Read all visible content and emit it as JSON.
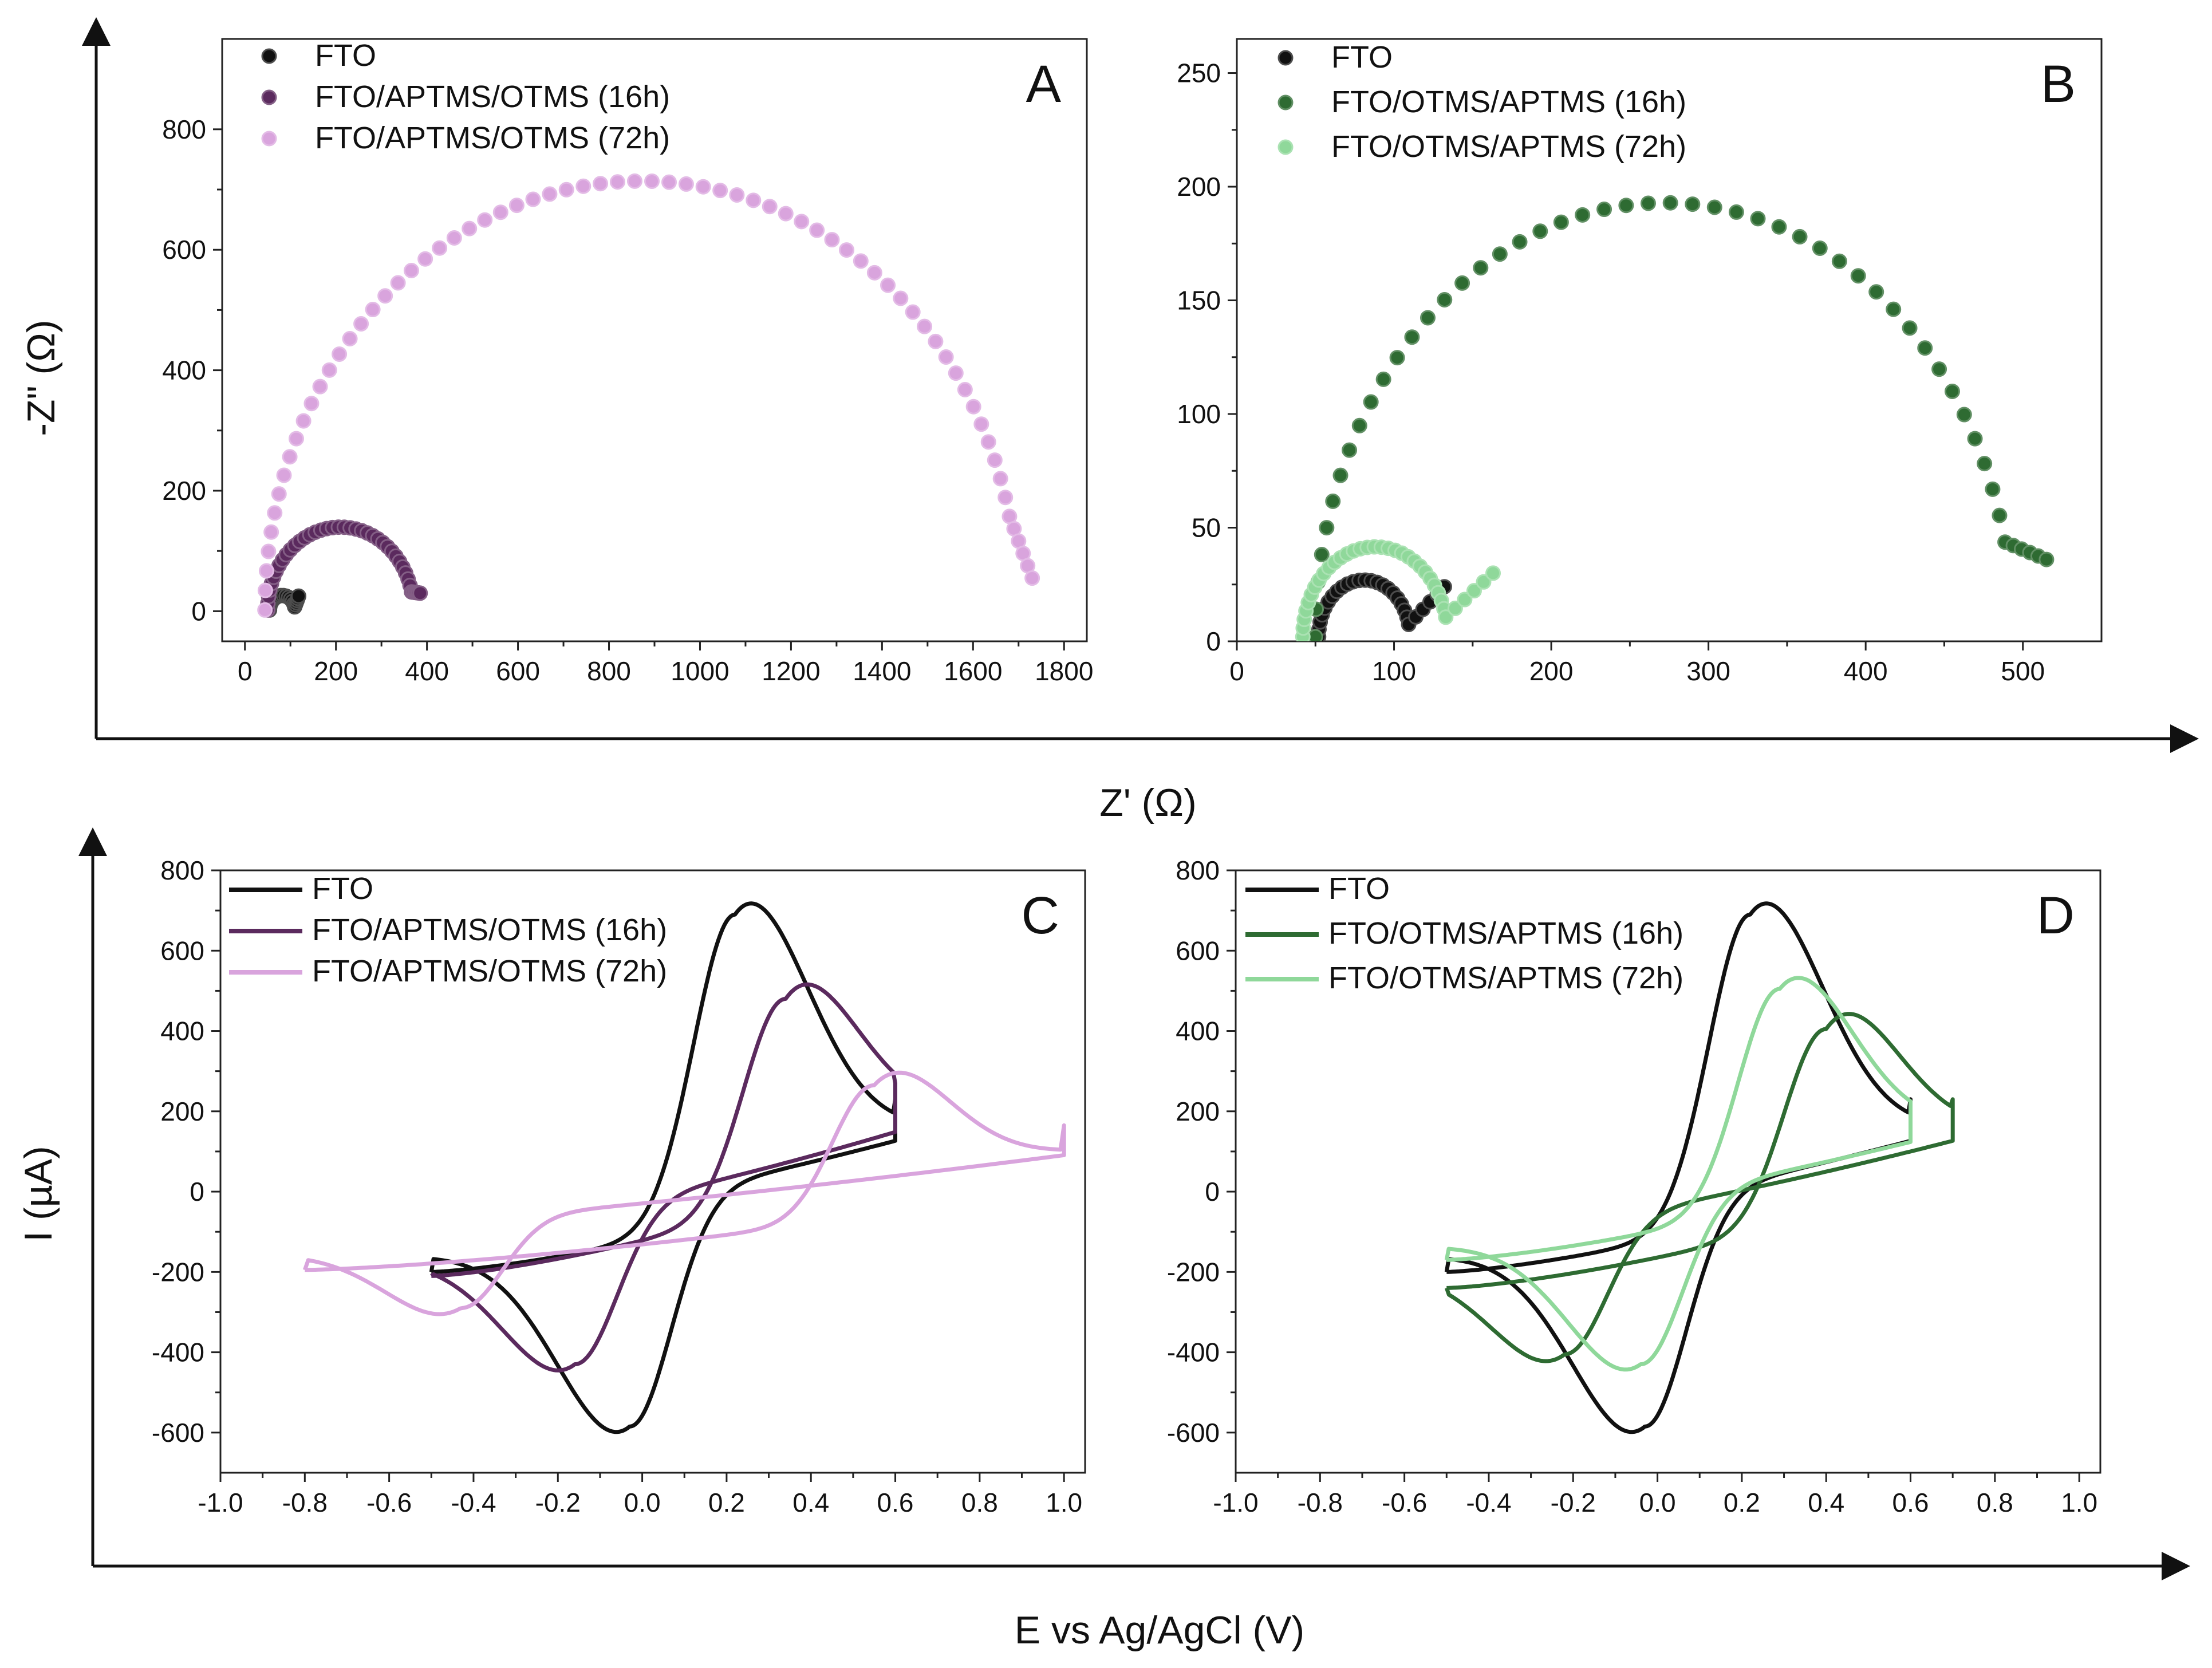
{
  "figure": {
    "top_y_title": "-Z\" (Ω)",
    "top_x_title": "Z' (Ω)",
    "bottom_y_title": "I (µA)",
    "bottom_x_title": "E vs Ag/AgCl (V)"
  },
  "colors": {
    "black": "#111111",
    "dark_purple": "#5b2a5e",
    "light_purple": "#d9a4dd",
    "dark_green": "#2e6b32",
    "light_green": "#8fd89a"
  },
  "chart_data": [
    {
      "id": "A",
      "panel_label": "A",
      "type": "scatter",
      "xlim": [
        -50,
        1850
      ],
      "ylim": [
        -50,
        950
      ],
      "xticks": [
        0,
        200,
        400,
        600,
        800,
        1000,
        1200,
        1400,
        1600,
        1800
      ],
      "yticks": [
        0,
        200,
        400,
        600,
        800
      ],
      "tick_labels_x": [
        "0",
        "200",
        "400",
        "600",
        "800",
        "1000",
        "1200",
        "1400",
        "1600",
        "1800"
      ],
      "tick_labels_y": [
        "0",
        "200",
        "400",
        "600",
        "800"
      ],
      "legend_position": "top-left",
      "series": [
        {
          "name": "FTO",
          "color_key": "black",
          "kind": "arc",
          "center": 82,
          "radius": 28,
          "tail_end": [
            118,
            25
          ],
          "points": 14
        },
        {
          "name": "FTO/APTMS/OTMS (16h)",
          "color_key": "dark_purple",
          "kind": "arc",
          "center": 210,
          "radius": 160,
          "tail_end": [
            385,
            30
          ],
          "points": 36
        },
        {
          "name": "FTO/APTMS/OTMS (72h)",
          "color_key": "light_purple",
          "kind": "arc",
          "center": 872,
          "radius": 828,
          "tail_end": [
            1730,
            55
          ],
          "points": 64
        }
      ]
    },
    {
      "id": "B",
      "panel_label": "B",
      "type": "scatter",
      "xlim": [
        0,
        550
      ],
      "ylim": [
        0,
        265
      ],
      "xticks": [
        0,
        100,
        200,
        300,
        400,
        500
      ],
      "yticks": [
        0,
        50,
        100,
        150,
        200,
        250
      ],
      "tick_labels_x": [
        "0",
        "100",
        "200",
        "300",
        "400",
        "500"
      ],
      "tick_labels_y": [
        "0",
        "50",
        "100",
        "150",
        "200",
        "250"
      ],
      "legend_position": "top-left",
      "series": [
        {
          "name": "FTO",
          "color_key": "black",
          "kind": "arc",
          "center": 81,
          "radius": 29,
          "tail_end": [
            132,
            24
          ],
          "points": 22
        },
        {
          "name": "FTO/OTMS/APTMS (16h)",
          "color_key": "dark_green",
          "kind": "arc",
          "center": 272,
          "radius": 222,
          "tail_end": [
            515,
            36
          ],
          "points": 46
        },
        {
          "name": "FTO/OTMS/APTMS (72h)",
          "color_key": "light_green",
          "kind": "arc",
          "center": 88,
          "radius": 46,
          "tail_end": [
            163,
            30
          ],
          "points": 30
        }
      ]
    },
    {
      "id": "C",
      "panel_label": "C",
      "type": "line",
      "xlim": [
        -1.0,
        1.05
      ],
      "ylim": [
        -700,
        800
      ],
      "xticks": [
        -1.0,
        -0.8,
        -0.6,
        -0.4,
        -0.2,
        0.0,
        0.2,
        0.4,
        0.6,
        0.8,
        1.0
      ],
      "yticks": [
        -600,
        -400,
        -200,
        0,
        200,
        400,
        600,
        800
      ],
      "tick_labels_x": [
        "-1.0",
        "-0.8",
        "-0.6",
        "-0.4",
        "-0.2",
        "0.0",
        "0.2",
        "0.4",
        "0.6",
        "0.8",
        "1.0"
      ],
      "tick_labels_y": [
        "-600",
        "-400",
        "-200",
        "0",
        "200",
        "400",
        "600",
        "800"
      ],
      "legend_position": "top-left",
      "series": [
        {
          "name": "FTO",
          "color_key": "black",
          "vmin": -0.5,
          "vmax": 0.6,
          "anodic_peak": [
            0.22,
            690
          ],
          "cathodic_peak": [
            -0.03,
            -585
          ],
          "end_high": 230,
          "end_low": -200
        },
        {
          "name": "FTO/APTMS/OTMS (16h)",
          "color_key": "dark_purple",
          "vmin": -0.5,
          "vmax": 0.6,
          "anodic_peak": [
            0.34,
            480
          ],
          "cathodic_peak": [
            -0.16,
            -430
          ],
          "end_high": 270,
          "end_low": -210
        },
        {
          "name": "FTO/APTMS/OTMS (72h)",
          "color_key": "light_purple",
          "vmin": -0.8,
          "vmax": 1.0,
          "anodic_peak": [
            0.55,
            265
          ],
          "cathodic_peak": [
            -0.43,
            -290
          ],
          "end_high": 165,
          "end_low": -195
        }
      ]
    },
    {
      "id": "D",
      "panel_label": "D",
      "type": "line",
      "xlim": [
        -1.0,
        1.05
      ],
      "ylim": [
        -700,
        800
      ],
      "xticks": [
        -1.0,
        -0.8,
        -0.6,
        -0.4,
        -0.2,
        0.0,
        0.2,
        0.4,
        0.6,
        0.8,
        1.0
      ],
      "yticks": [
        -600,
        -400,
        -200,
        0,
        200,
        400,
        600,
        800
      ],
      "tick_labels_x": [
        "-1.0",
        "-0.8",
        "-0.6",
        "-0.4",
        "-0.2",
        "0.0",
        "0.2",
        "0.4",
        "0.6",
        "0.8",
        "1.0"
      ],
      "tick_labels_y": [
        "-600",
        "-400",
        "-200",
        "0",
        "200",
        "400",
        "600",
        "800"
      ],
      "legend_position": "top-left",
      "series": [
        {
          "name": "FTO",
          "color_key": "black",
          "vmin": -0.5,
          "vmax": 0.6,
          "anodic_peak": [
            0.22,
            690
          ],
          "cathodic_peak": [
            -0.03,
            -585
          ],
          "end_high": 230,
          "end_low": -200
        },
        {
          "name": "FTO/OTMS/APTMS (16h)",
          "color_key": "dark_green",
          "vmin": -0.5,
          "vmax": 0.7,
          "anodic_peak": [
            0.4,
            405
          ],
          "cathodic_peak": [
            -0.22,
            -405
          ],
          "end_high": 230,
          "end_low": -240
        },
        {
          "name": "FTO/OTMS/APTMS (72h)",
          "color_key": "light_green",
          "vmin": -0.5,
          "vmax": 0.6,
          "anodic_peak": [
            0.29,
            505
          ],
          "cathodic_peak": [
            -0.04,
            -430
          ],
          "end_high": 225,
          "end_low": -170
        }
      ]
    }
  ]
}
